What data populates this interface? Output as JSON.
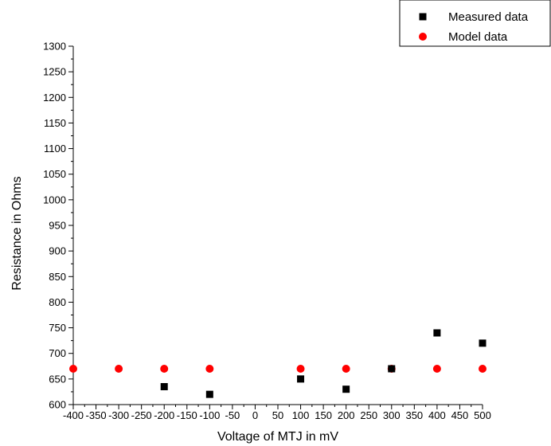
{
  "chart_data": {
    "type": "scatter",
    "title": "",
    "xlabel": "Voltage of MTJ in mV",
    "ylabel": "Resistance in Ohms",
    "xlim": [
      -400,
      500
    ],
    "ylim": [
      600,
      1300
    ],
    "xticks": [
      -400,
      -350,
      -300,
      -250,
      -200,
      -150,
      -100,
      -50,
      0,
      50,
      100,
      150,
      200,
      250,
      300,
      350,
      400,
      450,
      500
    ],
    "yticks": [
      600,
      650,
      700,
      750,
      800,
      850,
      900,
      950,
      1000,
      1050,
      1100,
      1150,
      1200,
      1250,
      1300
    ],
    "grid": false,
    "legend_position": "top-right",
    "series": [
      {
        "name": "Measured data",
        "marker": "square",
        "color": "#000000",
        "x": [
          -200,
          -100,
          100,
          200,
          300,
          400,
          500
        ],
        "y": [
          635,
          620,
          650,
          630,
          670,
          740,
          720
        ]
      },
      {
        "name": "Model data",
        "marker": "circle",
        "color": "#ff0000",
        "x": [
          -400,
          -300,
          -200,
          -100,
          100,
          200,
          300,
          400,
          500
        ],
        "y": [
          670,
          670,
          670,
          670,
          670,
          670,
          670,
          670,
          670
        ]
      }
    ]
  }
}
